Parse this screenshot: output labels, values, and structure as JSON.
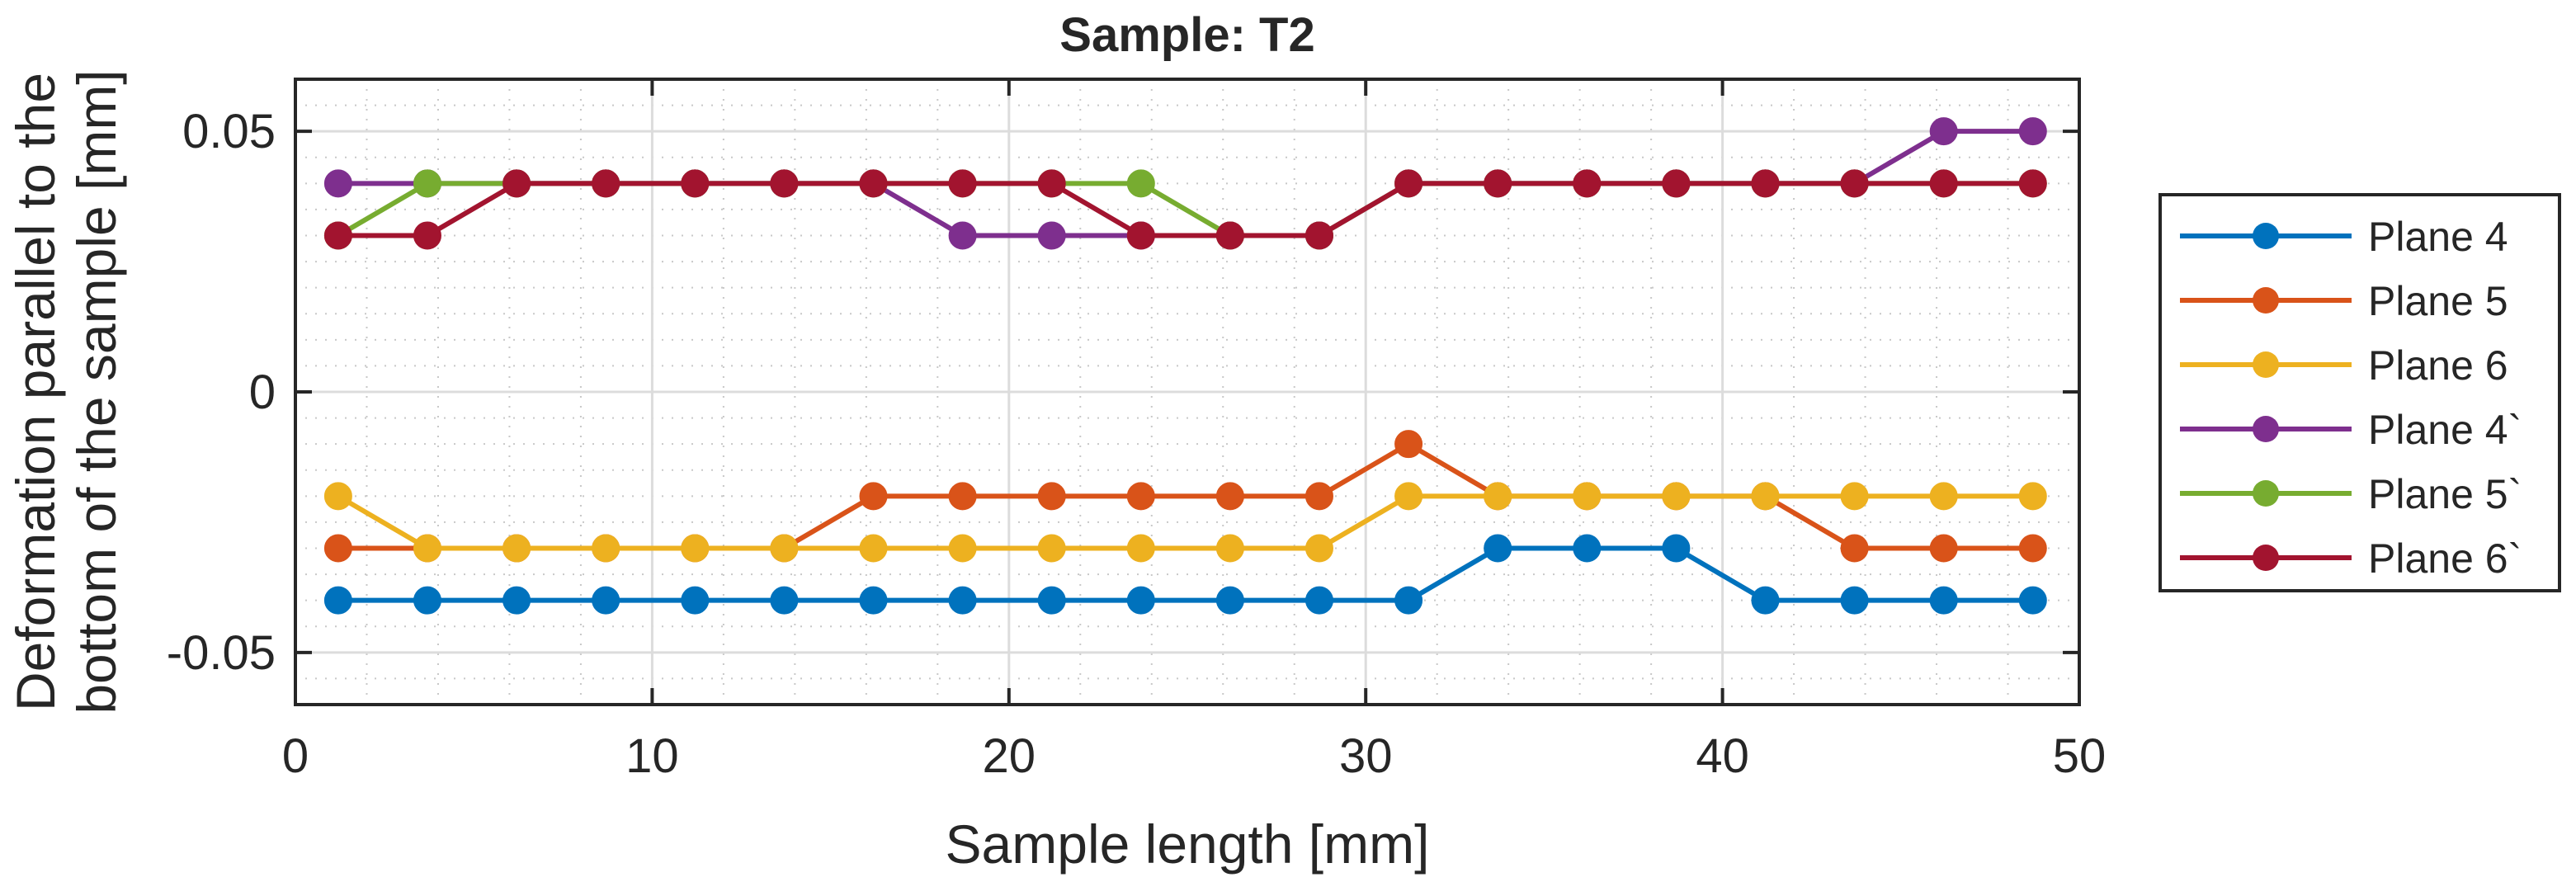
{
  "chart_data": {
    "type": "line",
    "title": "Sample: T2",
    "xlabel": "Sample length [mm]",
    "ylabel_lines": [
      "Deformation parallel to the",
      "bottom of the sample [mm]"
    ],
    "xlim": [
      0,
      50
    ],
    "ylim": [
      -0.06,
      0.06
    ],
    "xticks": [
      0,
      10,
      20,
      30,
      40,
      50
    ],
    "xtick_labels": [
      "0",
      "10",
      "20",
      "30",
      "40",
      "50"
    ],
    "yticks": [
      0.05,
      0,
      -0.05
    ],
    "ytick_labels": [
      "0.05",
      "0",
      "-0.05"
    ],
    "grid": true,
    "minor_grid": true,
    "legend_position": "outside-right",
    "x": [
      1.2,
      3.7,
      6.2,
      8.7,
      11.2,
      13.7,
      16.2,
      18.7,
      21.2,
      23.7,
      26.2,
      28.7,
      31.2,
      33.7,
      36.2,
      38.7,
      41.2,
      43.7,
      46.2,
      48.7
    ],
    "series": [
      {
        "name": "Plane 4",
        "color": "#0072BD",
        "values": [
          -0.04,
          -0.04,
          -0.04,
          -0.04,
          -0.04,
          -0.04,
          -0.04,
          -0.04,
          -0.04,
          -0.04,
          -0.04,
          -0.04,
          -0.04,
          -0.03,
          -0.03,
          -0.03,
          -0.04,
          -0.04,
          -0.04,
          -0.04
        ]
      },
      {
        "name": "Plane 5",
        "color": "#D95319",
        "values": [
          -0.03,
          -0.03,
          -0.03,
          -0.03,
          -0.03,
          -0.03,
          -0.02,
          -0.02,
          -0.02,
          -0.02,
          -0.02,
          -0.02,
          -0.01,
          -0.02,
          -0.02,
          -0.02,
          -0.02,
          -0.03,
          -0.03,
          -0.03
        ]
      },
      {
        "name": "Plane 6",
        "color": "#EDB120",
        "values": [
          -0.02,
          -0.03,
          -0.03,
          -0.03,
          -0.03,
          -0.03,
          -0.03,
          -0.03,
          -0.03,
          -0.03,
          -0.03,
          -0.03,
          -0.02,
          -0.02,
          -0.02,
          -0.02,
          -0.02,
          -0.02,
          -0.02,
          -0.02
        ]
      },
      {
        "name": "Plane 4`",
        "color": "#7E2F8E",
        "values": [
          0.04,
          0.04,
          0.04,
          0.04,
          0.04,
          0.04,
          0.04,
          0.03,
          0.03,
          0.03,
          0.03,
          0.03,
          0.04,
          0.04,
          0.04,
          0.04,
          0.04,
          0.04,
          0.05,
          0.05
        ]
      },
      {
        "name": "Plane 5`",
        "color": "#77AC30",
        "values": [
          0.03,
          0.04,
          0.04,
          0.04,
          0.04,
          0.04,
          0.04,
          0.04,
          0.04,
          0.04,
          0.03,
          0.03,
          0.04,
          0.04,
          0.04,
          0.04,
          0.04,
          0.04,
          0.04,
          0.04
        ]
      },
      {
        "name": "Plane 6`",
        "color": "#A2142F",
        "values": [
          0.03,
          0.03,
          0.04,
          0.04,
          0.04,
          0.04,
          0.04,
          0.04,
          0.04,
          0.03,
          0.03,
          0.03,
          0.04,
          0.04,
          0.04,
          0.04,
          0.04,
          0.04,
          0.04,
          0.04
        ]
      }
    ]
  }
}
